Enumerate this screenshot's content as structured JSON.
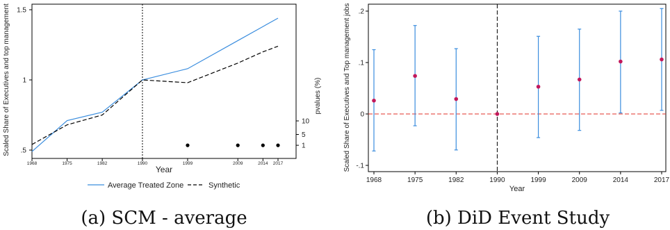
{
  "chart_data": [
    {
      "type": "line",
      "ylabel": "Scaled Share of Executives and top management",
      "xlabel": "Year",
      "ylabel_right": "pvalues (%)",
      "x_ticks": [
        "1968",
        "1975",
        "1982",
        "1990",
        "1999",
        "2009",
        "2014",
        "2017"
      ],
      "y_ticks": [
        ".5",
        "1",
        "1.5"
      ],
      "y_ticks_right": [
        "1",
        "5",
        "10"
      ],
      "ylim": [
        0.5,
        1.5
      ],
      "xlim": [
        1968,
        2017
      ],
      "vline": 1990,
      "series": [
        {
          "name": "Average Treated Zone",
          "x": [
            1968,
            1975,
            1982,
            1990,
            1999,
            2009,
            2014,
            2017
          ],
          "values": [
            0.49,
            0.71,
            0.77,
            1.0,
            1.08,
            1.28,
            1.38,
            1.44
          ]
        },
        {
          "name": "Synthetic",
          "x": [
            1968,
            1975,
            1982,
            1990,
            1999,
            2009,
            2014,
            2017
          ],
          "values": [
            0.54,
            0.68,
            0.75,
            1.0,
            0.98,
            1.12,
            1.2,
            1.24
          ]
        }
      ],
      "pvalues": {
        "x": [
          1999,
          2009,
          2014,
          2017
        ],
        "values": [
          1,
          1,
          1,
          1
        ]
      },
      "legend_placement": "bottom",
      "caption": "(a) SCM - average"
    },
    {
      "type": "scatter",
      "ylabel": "Scaled Share of Executives and Top management jobs",
      "xlabel": "Year",
      "categories": [
        "1968",
        "1975",
        "1982",
        "1990",
        "1999",
        "2009",
        "2014",
        "2017"
      ],
      "y_ticks": [
        "-.1",
        "0",
        ".1",
        ".2"
      ],
      "ylim": [
        -0.1,
        0.2
      ],
      "estimates": [
        0.026,
        0.074,
        0.029,
        0.0,
        0.053,
        0.067,
        0.102,
        0.106
      ],
      "ci_low": [
        -0.072,
        -0.023,
        -0.07,
        0.0,
        -0.046,
        -0.032,
        0.002,
        0.007
      ],
      "ci_high": [
        0.125,
        0.172,
        0.127,
        0.0,
        0.151,
        0.165,
        0.2,
        0.205
      ],
      "vline_category": "1990",
      "hline": 0,
      "caption": "(b) DiD Event Study"
    }
  ]
}
